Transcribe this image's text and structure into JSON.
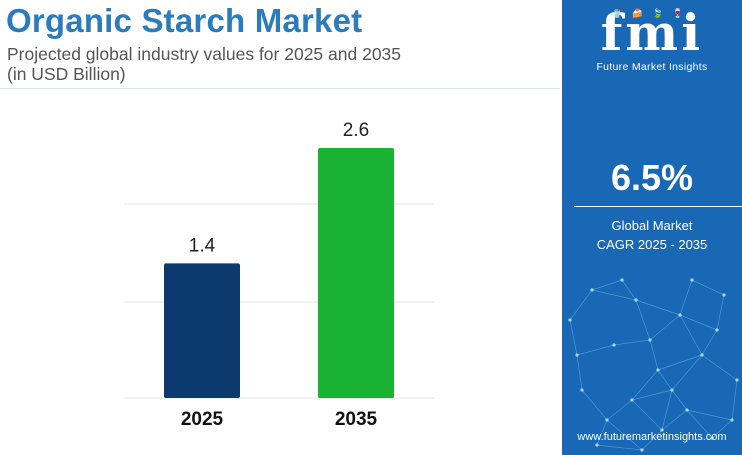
{
  "header": {
    "title": "Organic Starch Market",
    "subtitle_line1": "Projected global industry values for 2025 and 2035",
    "subtitle_line2": "(in USD Billion)"
  },
  "chart_data": {
    "type": "bar",
    "title": "Organic Starch Market",
    "categories": [
      "2025",
      "2035"
    ],
    "values": [
      1.4,
      2.6
    ],
    "colors": [
      "#0c3a6e",
      "#19b233"
    ],
    "ylim": [
      0,
      2.6
    ],
    "grid": true,
    "legend": "none"
  },
  "side_panel": {
    "logo_text": "fmi",
    "logo_icons": "🥤🍰🍃🍷",
    "logo_tagline": "Future Market Insights",
    "cagr_value": "6.5%",
    "cagr_label_line1": "Global Market",
    "cagr_label_line2": "CAGR 2025 - 2035",
    "website": "www.futuremarketinsights.com",
    "background_color": "#1868b5"
  }
}
